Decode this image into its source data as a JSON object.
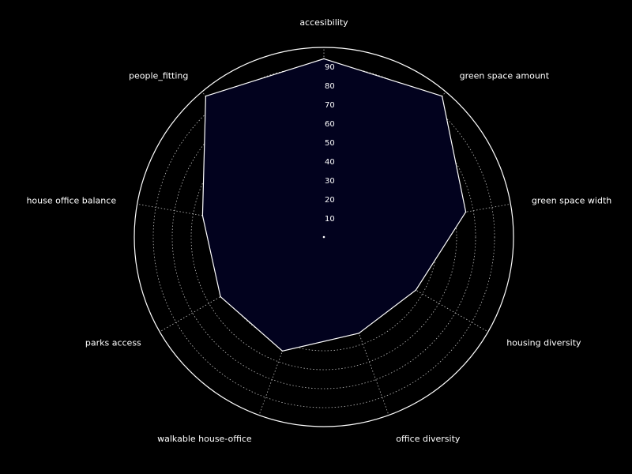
{
  "chart_data": {
    "type": "radar",
    "title": "",
    "categories": [
      "accesibility",
      "green space amount",
      "green space width",
      "housing diversity",
      "office diversity",
      "walkable house-office",
      "parks access",
      "house office balance",
      "people_fitting"
    ],
    "series": [
      {
        "values": [
          94,
          97,
          76,
          56,
          54,
          64,
          63,
          65,
          97
        ]
      }
    ],
    "rlim": [
      0,
      100
    ],
    "rticks": [
      10,
      20,
      30,
      40,
      50,
      60,
      70,
      80,
      90
    ],
    "grid": true,
    "colors": {
      "background": "#000000",
      "fill": "#02021e",
      "line": "#ffffff",
      "grid": "#bdbdbd",
      "text": "#ffffff"
    }
  }
}
